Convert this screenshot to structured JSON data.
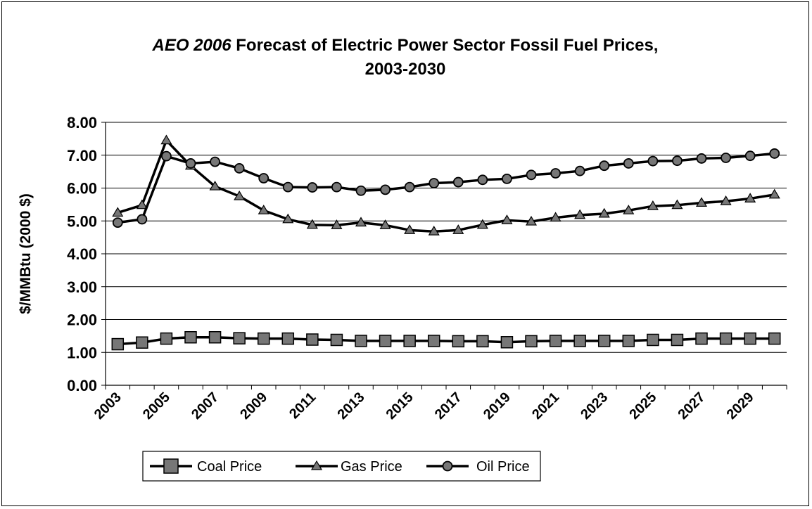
{
  "chart_data": {
    "type": "line",
    "title_prefix": "AEO 2006",
    "title_rest": "Forecast of Electric Power Sector Fossil Fuel Prices,",
    "title_line2": "2003-2030",
    "xlabel": "",
    "ylabel": "$/MMBtu (2000 $)",
    "ylim": [
      0,
      8
    ],
    "yticks": [
      "0.00",
      "1.00",
      "2.00",
      "3.00",
      "4.00",
      "5.00",
      "6.00",
      "7.00",
      "8.00"
    ],
    "x": [
      2003,
      2004,
      2005,
      2006,
      2007,
      2008,
      2009,
      2010,
      2011,
      2012,
      2013,
      2014,
      2015,
      2016,
      2017,
      2018,
      2019,
      2020,
      2021,
      2022,
      2023,
      2024,
      2025,
      2026,
      2027,
      2028,
      2029,
      2030
    ],
    "xtick_labels": [
      "2003",
      "2005",
      "2007",
      "2009",
      "2011",
      "2013",
      "2015",
      "2017",
      "2019",
      "2021",
      "2023",
      "2025",
      "2027",
      "2029"
    ],
    "grid": true,
    "legend_position": "bottom",
    "series": [
      {
        "name": "Coal Price",
        "marker": "square",
        "values": [
          1.25,
          1.3,
          1.42,
          1.46,
          1.46,
          1.43,
          1.42,
          1.42,
          1.39,
          1.38,
          1.35,
          1.35,
          1.35,
          1.35,
          1.34,
          1.34,
          1.31,
          1.34,
          1.35,
          1.35,
          1.35,
          1.35,
          1.38,
          1.38,
          1.42,
          1.42,
          1.42,
          1.42
        ]
      },
      {
        "name": "Gas Price",
        "marker": "triangle",
        "values": [
          5.25,
          5.48,
          7.45,
          6.68,
          6.05,
          5.75,
          5.32,
          5.05,
          4.88,
          4.87,
          4.95,
          4.87,
          4.72,
          4.68,
          4.72,
          4.88,
          5.02,
          4.98,
          5.1,
          5.18,
          5.22,
          5.32,
          5.45,
          5.48,
          5.55,
          5.6,
          5.68,
          5.8
        ]
      },
      {
        "name": "Oil Price",
        "marker": "circle",
        "values": [
          4.95,
          5.05,
          6.97,
          6.75,
          6.8,
          6.6,
          6.3,
          6.03,
          6.02,
          6.03,
          5.92,
          5.95,
          6.03,
          6.15,
          6.18,
          6.25,
          6.28,
          6.4,
          6.45,
          6.52,
          6.68,
          6.75,
          6.82,
          6.83,
          6.9,
          6.92,
          6.98,
          7.05
        ]
      }
    ]
  }
}
